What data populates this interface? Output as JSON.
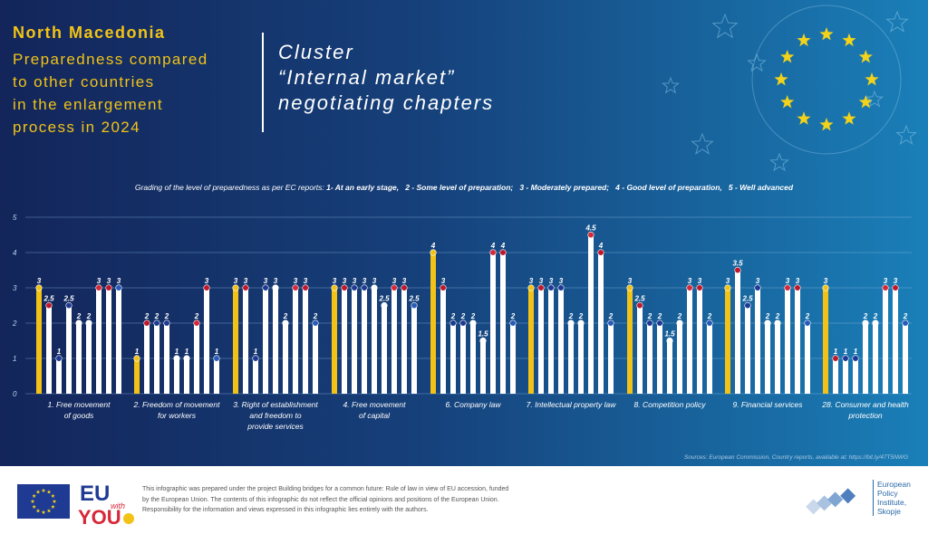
{
  "header": {
    "country": "North Macedonia",
    "subtitle_lines": [
      "Preparedness compared",
      "to other countries",
      "in the enlargement",
      "process in 2024"
    ],
    "cluster_lines": [
      "Cluster",
      "“Internal market”",
      "negotiating chapters"
    ]
  },
  "legend": {
    "intro": "Grading of the level of preparedness as per EC reports: ",
    "grades": [
      "1- At an early stage,",
      "2 - Some level of preparation;",
      "3 - Moderately prepared;",
      "4 - Good level of preparation,",
      "5 - Well advanced"
    ]
  },
  "sources": "Sources: European Commission, Country reports, available at: https://bit.ly/47T5NWG",
  "footer": {
    "disclaimer": "This infographic was prepared under the project Building bridges for a common future: Rule of law in view of EU accession, funded by the European Union. The contents of this infographic do not reflect the official opinions and positions of the European Union. Responsibility for the information and views expressed in this infographic lies entirely with the authors.",
    "eu_logo_lines": [
      "EU",
      "with",
      "YOU"
    ],
    "epi_lines": [
      "European",
      "Policy",
      "Institute,",
      "Skopje"
    ]
  },
  "colors": {
    "highlight_bar": "#f2c316",
    "other_bar": "#ffffff",
    "title": "#f2c316",
    "stars": "#f2d21a"
  },
  "chart_data": {
    "type": "bar",
    "ylim": [
      0,
      5
    ],
    "yticks": [
      "0",
      "1",
      "2",
      "3",
      "4",
      "5"
    ],
    "grid": true,
    "groups": [
      {
        "label_lines": [
          "1. Free movement",
          "of goods"
        ],
        "values": [
          3,
          2.5,
          1,
          2.5,
          2,
          2,
          3,
          3,
          3
        ]
      },
      {
        "label_lines": [
          "2. Freedom of movement",
          "for workers"
        ],
        "values": [
          1,
          2,
          2,
          2,
          1,
          1,
          2,
          3,
          1
        ]
      },
      {
        "label_lines": [
          "3. Right of establishment",
          "and freedom to",
          "provide services"
        ],
        "values": [
          3,
          3,
          1,
          3,
          3,
          2,
          3,
          3,
          2
        ]
      },
      {
        "label_lines": [
          "4. Free movement",
          "of capital"
        ],
        "values": [
          3,
          3,
          3,
          3,
          3,
          2.5,
          3,
          3,
          2.5
        ]
      },
      {
        "label_lines": [
          "6. Company law"
        ],
        "values": [
          4,
          3,
          2,
          2,
          2,
          1.5,
          4,
          4,
          2
        ]
      },
      {
        "label_lines": [
          "7. Intellectual property law"
        ],
        "values": [
          3,
          3,
          3,
          3,
          2,
          2,
          4.5,
          4,
          2
        ]
      },
      {
        "label_lines": [
          "8. Competition policy"
        ],
        "values": [
          3,
          2.5,
          2,
          2,
          1.5,
          2,
          3,
          3,
          2
        ]
      },
      {
        "label_lines": [
          "9. Financial services"
        ],
        "values": [
          3,
          3.5,
          2.5,
          3,
          2,
          2,
          3,
          3,
          2
        ]
      },
      {
        "label_lines": [
          "28. Consumer and health",
          "protection"
        ],
        "values": [
          3,
          1,
          1,
          1,
          2,
          2,
          3,
          3,
          2
        ]
      }
    ]
  }
}
